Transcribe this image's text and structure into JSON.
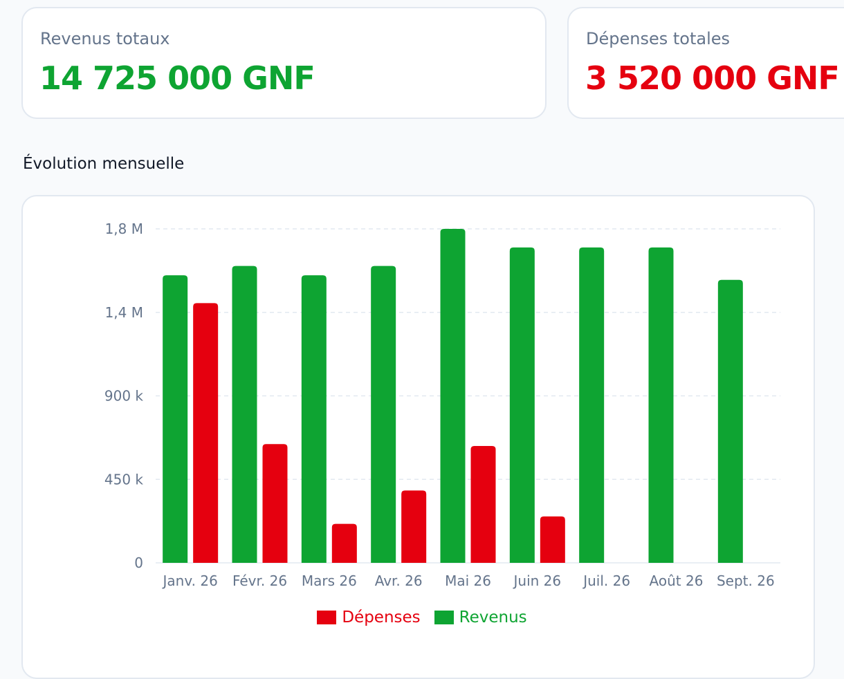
{
  "cards": {
    "revenue": {
      "label": "Revenus totaux",
      "value": "14 725 000 GNF"
    },
    "expenses": {
      "label": "Dépenses totales",
      "value": "3 520 000 GNF"
    }
  },
  "section_title": "Évolution mensuelle",
  "colors": {
    "revenue": "#0ea432",
    "expense": "#e5000f",
    "grid": "#e2e8f0",
    "muted": "#64748b"
  },
  "chart_data": {
    "type": "bar",
    "categories": [
      "Janv. 26",
      "Févr. 26",
      "Mars 26",
      "Avr. 26",
      "Mai 26",
      "Juin 26",
      "Juil. 26",
      "Août 26",
      "Sept. 26"
    ],
    "series": [
      {
        "name": "Revenus",
        "color": "#0ea432",
        "values": [
          1550000,
          1600000,
          1550000,
          1600000,
          1800000,
          1700000,
          1700000,
          1700000,
          1525000
        ]
      },
      {
        "name": "Dépenses",
        "color": "#e5000f",
        "values": [
          1400000,
          640000,
          210000,
          390000,
          630000,
          250000,
          0,
          0,
          0
        ]
      }
    ],
    "yticks": [
      {
        "value": 0,
        "label": "0"
      },
      {
        "value": 450000,
        "label": "450 k"
      },
      {
        "value": 900000,
        "label": "900 k"
      },
      {
        "value": 1350000,
        "label": "1,4 M"
      },
      {
        "value": 1800000,
        "label": "1,8 M"
      }
    ],
    "ylim": [
      0,
      1800000
    ],
    "grid": true,
    "legend": {
      "position": "bottom-center",
      "entries": [
        {
          "name": "Dépenses",
          "color": "#e5000f"
        },
        {
          "name": "Revenus",
          "color": "#0ea432"
        }
      ]
    }
  }
}
